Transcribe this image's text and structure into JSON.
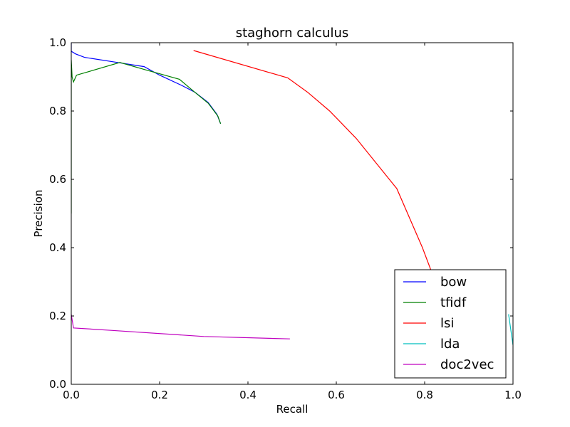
{
  "chart_data": {
    "type": "line",
    "title": "staghorn calculus",
    "xlabel": "Recall",
    "ylabel": "Precision",
    "xlim": [
      0.0,
      1.0
    ],
    "ylim": [
      0.0,
      1.0
    ],
    "xticks": [
      "0.0",
      "0.2",
      "0.4",
      "0.6",
      "0.8",
      "1.0"
    ],
    "yticks": [
      "0.0",
      "0.2",
      "0.4",
      "0.6",
      "0.8",
      "1.0"
    ],
    "grid": false,
    "legend_position": "bottom-right",
    "series": [
      {
        "name": "bow",
        "color": "#0000ff",
        "points": [
          [
            0.0,
            1.0
          ],
          [
            0.0,
            0.975
          ],
          [
            0.01,
            0.967
          ],
          [
            0.03,
            0.957
          ],
          [
            0.105,
            0.942
          ],
          [
            0.165,
            0.93
          ],
          [
            0.2,
            0.905
          ],
          [
            0.25,
            0.875
          ],
          [
            0.28,
            0.855
          ],
          [
            0.31,
            0.825
          ],
          [
            0.33,
            0.79
          ],
          [
            0.338,
            0.763
          ]
        ]
      },
      {
        "name": "tfidf",
        "color": "#008000",
        "points": [
          [
            0.0,
            0.5
          ],
          [
            0.0,
            0.95
          ],
          [
            0.002,
            0.9
          ],
          [
            0.005,
            0.885
          ],
          [
            0.012,
            0.905
          ],
          [
            0.11,
            0.942
          ],
          [
            0.17,
            0.92
          ],
          [
            0.245,
            0.893
          ],
          [
            0.275,
            0.86
          ],
          [
            0.31,
            0.823
          ],
          [
            0.332,
            0.785
          ],
          [
            0.338,
            0.763
          ]
        ]
      },
      {
        "name": "lsi",
        "color": "#ff0000",
        "points": [
          [
            0.277,
            0.977
          ],
          [
            0.49,
            0.897
          ],
          [
            0.535,
            0.855
          ],
          [
            0.585,
            0.8
          ],
          [
            0.645,
            0.72
          ],
          [
            0.737,
            0.573
          ],
          [
            0.795,
            0.4
          ],
          [
            0.83,
            0.28
          ],
          [
            0.86,
            0.2
          ],
          [
            0.88,
            0.15
          ]
        ]
      },
      {
        "name": "lda",
        "color": "#00bfbf",
        "points": [
          [
            0.99,
            0.205
          ],
          [
            1.0,
            0.115
          ]
        ]
      },
      {
        "name": "doc2vec",
        "color": "#bf00bf",
        "points": [
          [
            0.0,
            0.205
          ],
          [
            0.005,
            0.165
          ],
          [
            0.09,
            0.158
          ],
          [
            0.3,
            0.14
          ],
          [
            0.495,
            0.133
          ]
        ]
      }
    ]
  }
}
